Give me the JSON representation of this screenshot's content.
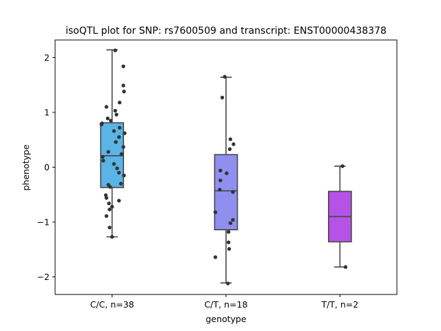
{
  "chart_data": {
    "type": "box",
    "title": "isoQTL plot for SNP: rs7600509 and transcript: ENST00000438378",
    "xlabel": "genotype",
    "ylabel": "phenotype",
    "ylim": [
      -2.32,
      2.32
    ],
    "y_ticks": [
      -2,
      -1,
      0,
      1,
      2
    ],
    "y_tick_labels": [
      "−2",
      "−1",
      "0",
      "1",
      "2"
    ],
    "categories": [
      "C/C, n=38",
      "C/T, n=18",
      "T/T, n=2"
    ],
    "grid": false,
    "legend": "none",
    "boxes": [
      {
        "category": "C/C, n=38",
        "color": "#5ab4e6",
        "whisker_low": -1.27,
        "q1": -0.37,
        "median": 0.21,
        "q3": 0.81,
        "whisker_high": 2.14
      },
      {
        "category": "C/T, n=18",
        "color": "#8f8ff0",
        "whisker_low": -2.11,
        "q1": -1.14,
        "median": -0.43,
        "q3": 0.23,
        "whisker_high": 1.64
      },
      {
        "category": "T/T, n=2",
        "color": "#b553e6",
        "whisker_low": -1.82,
        "q1": -1.36,
        "median": -0.9,
        "q3": -0.44,
        "whisker_high": 0.02
      }
    ],
    "points": [
      {
        "category": "C/C, n=38",
        "x_offset": 0.05,
        "y": 2.13
      },
      {
        "category": "C/C, n=38",
        "x_offset": 0.18,
        "y": 1.84
      },
      {
        "category": "C/C, n=38",
        "x_offset": 0.18,
        "y": 1.49
      },
      {
        "category": "C/C, n=38",
        "x_offset": 0.19,
        "y": 1.38
      },
      {
        "category": "C/C, n=38",
        "x_offset": 0.12,
        "y": 1.18
      },
      {
        "category": "C/C, n=38",
        "x_offset": -0.09,
        "y": 1.1
      },
      {
        "category": "C/C, n=38",
        "x_offset": 0.05,
        "y": 1.03
      },
      {
        "category": "C/C, n=38",
        "x_offset": 0.07,
        "y": 0.96
      },
      {
        "category": "C/C, n=38",
        "x_offset": -0.07,
        "y": 0.89
      },
      {
        "category": "C/C, n=38",
        "x_offset": -0.02,
        "y": 0.85
      },
      {
        "category": "C/C, n=38",
        "x_offset": -0.17,
        "y": 0.78
      },
      {
        "category": "C/C, n=38",
        "x_offset": 0.12,
        "y": 0.72
      },
      {
        "category": "C/C, n=38",
        "x_offset": 0.03,
        "y": 0.66
      },
      {
        "category": "C/C, n=38",
        "x_offset": 0.2,
        "y": 0.62
      },
      {
        "category": "C/C, n=38",
        "x_offset": 0.11,
        "y": 0.55
      },
      {
        "category": "C/C, n=38",
        "x_offset": 0.06,
        "y": 0.46
      },
      {
        "category": "C/C, n=38",
        "x_offset": 0.18,
        "y": 0.37
      },
      {
        "category": "C/C, n=38",
        "x_offset": -0.06,
        "y": 0.28
      },
      {
        "category": "C/C, n=38",
        "x_offset": 0.15,
        "y": 0.24
      },
      {
        "category": "C/C, n=38",
        "x_offset": -0.15,
        "y": 0.19
      },
      {
        "category": "C/C, n=38",
        "x_offset": -0.14,
        "y": 0.12
      },
      {
        "category": "C/C, n=38",
        "x_offset": 0.03,
        "y": 0.06
      },
      {
        "category": "C/C, n=38",
        "x_offset": 0.08,
        "y": -0.02
      },
      {
        "category": "C/C, n=38",
        "x_offset": 0.11,
        "y": -0.1
      },
      {
        "category": "C/C, n=38",
        "x_offset": 0.19,
        "y": -0.15
      },
      {
        "category": "C/C, n=38",
        "x_offset": -0.06,
        "y": -0.32
      },
      {
        "category": "C/C, n=38",
        "x_offset": -0.03,
        "y": -0.36
      },
      {
        "category": "C/C, n=38",
        "x_offset": 0.14,
        "y": -0.3
      },
      {
        "category": "C/C, n=38",
        "x_offset": -0.1,
        "y": -0.51
      },
      {
        "category": "C/C, n=38",
        "x_offset": -0.09,
        "y": -0.56
      },
      {
        "category": "C/C, n=38",
        "x_offset": 0.11,
        "y": -0.61
      },
      {
        "category": "C/C, n=38",
        "x_offset": -0.05,
        "y": -0.66
      },
      {
        "category": "C/C, n=38",
        "x_offset": 0.0,
        "y": -0.72
      },
      {
        "category": "C/C, n=38",
        "x_offset": -0.04,
        "y": -0.77
      },
      {
        "category": "C/C, n=38",
        "x_offset": -0.09,
        "y": -0.89
      },
      {
        "category": "C/C, n=38",
        "x_offset": -0.04,
        "y": -1.1
      },
      {
        "category": "C/C, n=38",
        "x_offset": 0.0,
        "y": -1.27
      },
      {
        "category": "C/C, n=38",
        "x_offset": -0.16,
        "y": 0.8
      },
      {
        "category": "C/T, n=18",
        "x_offset": -0.02,
        "y": 1.65
      },
      {
        "category": "C/T, n=18",
        "x_offset": -0.06,
        "y": 1.27
      },
      {
        "category": "C/T, n=18",
        "x_offset": 0.07,
        "y": 0.51
      },
      {
        "category": "C/T, n=18",
        "x_offset": 0.12,
        "y": 0.42
      },
      {
        "category": "C/T, n=18",
        "x_offset": 0.06,
        "y": 0.33
      },
      {
        "category": "C/T, n=18",
        "x_offset": -0.09,
        "y": -0.06
      },
      {
        "category": "C/T, n=18",
        "x_offset": 0.01,
        "y": -0.11
      },
      {
        "category": "C/T, n=18",
        "x_offset": -0.09,
        "y": -0.24
      },
      {
        "category": "C/T, n=18",
        "x_offset": -0.1,
        "y": -0.41
      },
      {
        "category": "C/T, n=18",
        "x_offset": 0.11,
        "y": -0.45
      },
      {
        "category": "C/T, n=18",
        "x_offset": -0.17,
        "y": -0.82
      },
      {
        "category": "C/T, n=18",
        "x_offset": 0.11,
        "y": -0.96
      },
      {
        "category": "C/T, n=18",
        "x_offset": 0.07,
        "y": -1.02
      },
      {
        "category": "C/T, n=18",
        "x_offset": 0.04,
        "y": -1.18
      },
      {
        "category": "C/T, n=18",
        "x_offset": 0.04,
        "y": -1.37
      },
      {
        "category": "C/T, n=18",
        "x_offset": 0.05,
        "y": -1.49
      },
      {
        "category": "C/T, n=18",
        "x_offset": -0.17,
        "y": -1.64
      },
      {
        "category": "C/T, n=18",
        "x_offset": 0.03,
        "y": -2.12
      },
      {
        "category": "T/T, n=2",
        "x_offset": 0.04,
        "y": 0.02
      },
      {
        "category": "T/T, n=2",
        "x_offset": 0.09,
        "y": -1.82
      }
    ]
  }
}
